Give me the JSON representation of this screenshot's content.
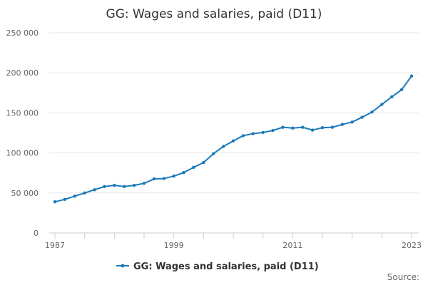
{
  "chart_data": {
    "type": "line",
    "title": "GG: Wages and salaries, paid (D11)",
    "xlabel": "",
    "ylabel": "",
    "x": [
      1987,
      1988,
      1989,
      1990,
      1991,
      1992,
      1993,
      1994,
      1995,
      1996,
      1997,
      1998,
      1999,
      2000,
      2001,
      2002,
      2003,
      2004,
      2005,
      2006,
      2007,
      2008,
      2009,
      2010,
      2011,
      2012,
      2013,
      2014,
      2015,
      2016,
      2017,
      2018,
      2019,
      2020,
      2021,
      2022,
      2023
    ],
    "series": [
      {
        "name": "GG: Wages and salaries, paid (D11)",
        "values": [
          39000,
          42000,
          46000,
          50000,
          54000,
          58000,
          59500,
          58000,
          59500,
          62000,
          67500,
          68000,
          71000,
          75500,
          82000,
          88000,
          99000,
          108000,
          115000,
          121500,
          124000,
          125500,
          128000,
          132000,
          131000,
          132000,
          128500,
          131500,
          132000,
          135500,
          138500,
          144500,
          151000,
          160500,
          170000,
          179000,
          196000
        ]
      }
    ],
    "xticks": [
      "1987",
      "1999",
      "2011",
      "2023"
    ],
    "yticks": [
      "0",
      "50 000",
      "100 000",
      "150 000",
      "200 000",
      "250 000"
    ],
    "ytick_values": [
      0,
      50000,
      100000,
      150000,
      200000,
      250000
    ],
    "xlim": [
      1987,
      2023
    ],
    "ylim": [
      0,
      250000
    ],
    "grid": true,
    "legend_position": "bottom",
    "source_label": "Source:",
    "colors": {
      "series": "#1a7ab8",
      "grid": "#e6e6e6",
      "axis": "#cccccc"
    }
  }
}
